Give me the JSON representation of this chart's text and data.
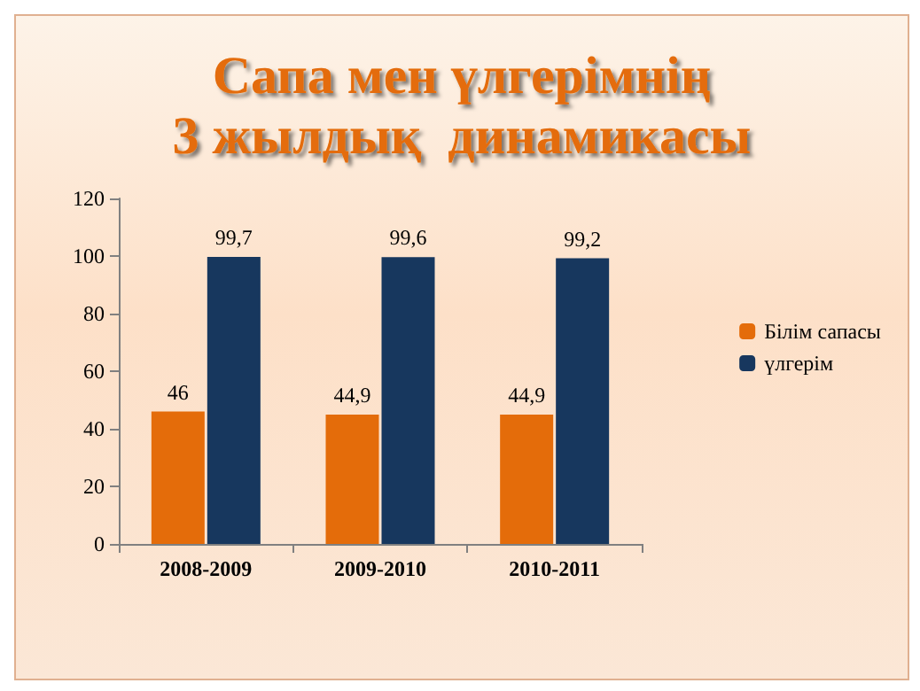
{
  "chart_data": {
    "type": "bar",
    "title": "Сапа мен үлгерімнің\n3 жылдық  динамикасы",
    "categories": [
      "2008-2009",
      "2009-2010",
      "2010-2011"
    ],
    "series": [
      {
        "name": "Білім сапасы",
        "color": "#e46c0a",
        "values": [
          46,
          44.9,
          44.9
        ],
        "value_labels": [
          "46",
          "44,9",
          "44,9"
        ]
      },
      {
        "name": "үлгерім",
        "color": "#17375e",
        "values": [
          99.7,
          99.6,
          99.2
        ],
        "value_labels": [
          "99,7",
          "99,6",
          "99,2"
        ]
      }
    ],
    "ylim": [
      0,
      120
    ],
    "yticks": [
      0,
      20,
      40,
      60,
      80,
      100,
      120
    ],
    "grid": false,
    "legend": "right"
  }
}
